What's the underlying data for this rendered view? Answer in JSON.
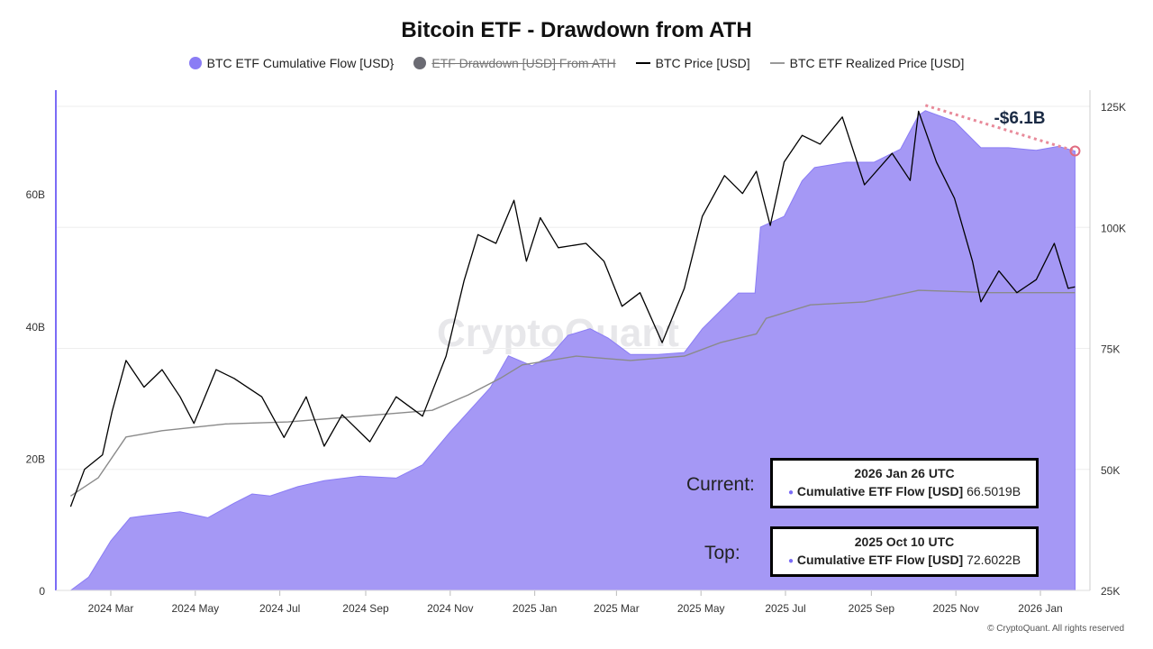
{
  "chart_data": {
    "type": "area+line",
    "title": "Bitcoin ETF - Drawdown from ATH",
    "legend": [
      {
        "name": "BTC ETF Cumulative Flow [USD}",
        "color": "#8a7cf5",
        "marker": "dot",
        "hidden": false
      },
      {
        "name": "ETF Drawdown [USD] From ATH",
        "color": "#6b6b73",
        "marker": "dot",
        "hidden": true
      },
      {
        "name": "BTC Price [USD]",
        "color": "#000000",
        "marker": "line",
        "hidden": false
      },
      {
        "name": "BTC ETF Realized Price [USD]",
        "color": "#888888",
        "marker": "line",
        "hidden": false
      }
    ],
    "legend_position": "top",
    "x_ticks": [
      "2024 Mar",
      "2024 May",
      "2024 Jul",
      "2024 Sep",
      "2024 Nov",
      "2025 Jan",
      "2025 Mar",
      "2025 May",
      "2025 Jul",
      "2025 Sep",
      "2025 Nov",
      "2026 Jan"
    ],
    "y_left_ticks": [
      "0",
      "20B",
      "40B",
      "60B"
    ],
    "y_left_range_billions": [
      0,
      75
    ],
    "y_right_ticks": [
      "25K",
      "50K",
      "75K",
      "100K",
      "125K"
    ],
    "y_right_range_thousands": [
      25,
      125
    ],
    "grid": true,
    "series": [
      {
        "name": "BTC ETF Cumulative Flow [USD}",
        "axis": "left",
        "unit": "B USD",
        "type": "area",
        "points": [
          [
            "2024-02-01",
            0
          ],
          [
            "2024-02-14",
            2
          ],
          [
            "2024-03-01",
            7.5
          ],
          [
            "2024-03-15",
            11
          ],
          [
            "2024-03-25",
            11.3
          ],
          [
            "2024-04-20",
            11.9
          ],
          [
            "2024-05-10",
            11
          ],
          [
            "2024-05-29",
            13.2
          ],
          [
            "2024-06-11",
            14.6
          ],
          [
            "2024-06-24",
            14.3
          ],
          [
            "2024-07-14",
            15.7
          ],
          [
            "2024-08-02",
            16.6
          ],
          [
            "2024-08-28",
            17.3
          ],
          [
            "2024-09-23",
            17
          ],
          [
            "2024-10-12",
            19
          ],
          [
            "2024-11-01",
            24
          ],
          [
            "2024-11-14",
            27
          ],
          [
            "2024-11-30",
            30.7
          ],
          [
            "2024-12-13",
            35.5
          ],
          [
            "2024-12-30",
            34
          ],
          [
            "2025-01-12",
            35.5
          ],
          [
            "2025-01-25",
            38.6
          ],
          [
            "2025-02-10",
            39.6
          ],
          [
            "2025-02-23",
            38.2
          ],
          [
            "2025-03-11",
            35.7
          ],
          [
            "2025-03-31",
            35.7
          ],
          [
            "2025-04-19",
            36
          ],
          [
            "2025-05-02",
            39.6
          ],
          [
            "2025-05-15",
            42.3
          ],
          [
            "2025-05-28",
            45
          ],
          [
            "2025-06-09",
            45
          ],
          [
            "2025-06-13",
            55
          ],
          [
            "2025-06-30",
            56.6
          ],
          [
            "2025-07-13",
            62
          ],
          [
            "2025-07-22",
            64
          ],
          [
            "2025-08-14",
            64.8
          ],
          [
            "2025-09-03",
            64.8
          ],
          [
            "2025-09-22",
            66.8
          ],
          [
            "2025-10-05",
            71.9
          ],
          [
            "2025-10-10",
            72.6
          ],
          [
            "2025-10-31",
            71
          ],
          [
            "2025-11-19",
            67
          ],
          [
            "2025-12-09",
            67
          ],
          [
            "2025-12-29",
            66.6
          ],
          [
            "2026-01-14",
            67.2
          ],
          [
            "2026-01-26",
            66.5
          ]
        ]
      },
      {
        "name": "BTC Price [USD]",
        "axis": "right",
        "unit": "K USD",
        "type": "line",
        "points": [
          [
            "2024-02-01",
            42.3
          ],
          [
            "2024-02-11",
            50
          ],
          [
            "2024-02-24",
            53
          ],
          [
            "2024-03-02",
            62
          ],
          [
            "2024-03-12",
            72.5
          ],
          [
            "2024-03-25",
            67
          ],
          [
            "2024-04-07",
            70.6
          ],
          [
            "2024-04-20",
            65
          ],
          [
            "2024-04-30",
            59.5
          ],
          [
            "2024-05-16",
            70.6
          ],
          [
            "2024-05-29",
            68.8
          ],
          [
            "2024-06-18",
            65
          ],
          [
            "2024-07-04",
            56.6
          ],
          [
            "2024-07-20",
            65
          ],
          [
            "2024-08-02",
            54.8
          ],
          [
            "2024-08-15",
            61.3
          ],
          [
            "2024-09-04",
            55.7
          ],
          [
            "2024-09-23",
            65
          ],
          [
            "2024-10-12",
            61
          ],
          [
            "2024-10-29",
            73.4
          ],
          [
            "2024-11-11",
            89
          ],
          [
            "2024-11-21",
            98.5
          ],
          [
            "2024-12-04",
            96.7
          ],
          [
            "2024-12-17",
            105.6
          ],
          [
            "2024-12-26",
            93
          ],
          [
            "2025-01-05",
            102
          ],
          [
            "2025-01-18",
            95.8
          ],
          [
            "2025-02-07",
            96.7
          ],
          [
            "2025-02-20",
            93
          ],
          [
            "2025-03-05",
            83.7
          ],
          [
            "2025-03-18",
            86.5
          ],
          [
            "2025-04-03",
            76.2
          ],
          [
            "2025-04-19",
            87.4
          ],
          [
            "2025-05-02",
            102.3
          ],
          [
            "2025-05-18",
            110.7
          ],
          [
            "2025-05-31",
            107
          ],
          [
            "2025-06-10",
            111.6
          ],
          [
            "2025-06-20",
            100.4
          ],
          [
            "2025-06-30",
            113.5
          ],
          [
            "2025-07-13",
            119
          ],
          [
            "2025-07-26",
            117.2
          ],
          [
            "2025-08-11",
            122.8
          ],
          [
            "2025-08-27",
            108.8
          ],
          [
            "2025-09-16",
            115.3
          ],
          [
            "2025-09-29",
            109.7
          ],
          [
            "2025-10-05",
            124
          ],
          [
            "2025-10-18",
            113.5
          ],
          [
            "2025-10-31",
            106
          ],
          [
            "2025-11-13",
            93
          ],
          [
            "2025-11-19",
            84.6
          ],
          [
            "2025-12-02",
            91
          ],
          [
            "2025-12-15",
            86.5
          ],
          [
            "2025-12-29",
            89.2
          ],
          [
            "2026-01-11",
            96.7
          ],
          [
            "2026-01-21",
            87.4
          ],
          [
            "2026-01-26",
            87.7
          ]
        ]
      },
      {
        "name": "BTC ETF Realized Price [USD]",
        "axis": "right",
        "unit": "K USD",
        "type": "line",
        "points": [
          [
            "2024-02-01",
            44.5
          ],
          [
            "2024-02-21",
            48.3
          ],
          [
            "2024-03-12",
            56.7
          ],
          [
            "2024-04-07",
            58
          ],
          [
            "2024-05-23",
            59.4
          ],
          [
            "2024-07-07",
            59.8
          ],
          [
            "2024-08-28",
            61
          ],
          [
            "2024-10-19",
            62.2
          ],
          [
            "2024-11-14",
            65.4
          ],
          [
            "2024-12-07",
            68.8
          ],
          [
            "2024-12-23",
            71.6
          ],
          [
            "2025-01-31",
            73.4
          ],
          [
            "2025-03-11",
            72.5
          ],
          [
            "2025-04-19",
            73.4
          ],
          [
            "2025-05-15",
            76.2
          ],
          [
            "2025-06-10",
            78
          ],
          [
            "2025-06-17",
            81.2
          ],
          [
            "2025-07-19",
            84
          ],
          [
            "2025-08-27",
            84.6
          ],
          [
            "2025-10-05",
            87
          ],
          [
            "2025-11-26",
            86.5
          ],
          [
            "2026-01-26",
            86.5
          ]
        ]
      }
    ],
    "annotations": {
      "drawdown_label": "-$6.1B",
      "drawdown_color": "#e88a9a",
      "top_date": "2025-10-10",
      "current_date": "2026-01-26"
    }
  },
  "tooltips": {
    "current": {
      "label": "Current:",
      "date": "2026 Jan 26 UTC",
      "series": "Cumulative ETF Flow [USD]",
      "value": "66.5019B"
    },
    "top": {
      "label": "Top:",
      "date": "2025 Oct 10 UTC",
      "series": "Cumulative ETF Flow [USD]",
      "value": "72.6022B"
    }
  },
  "watermark": "CryptoQuant",
  "copyright": "© CryptoQuant. All rights reserved",
  "colors": {
    "area": "#a598f5",
    "area_stroke": "#8a7cf5",
    "axis_left": "#7b6cf6"
  }
}
